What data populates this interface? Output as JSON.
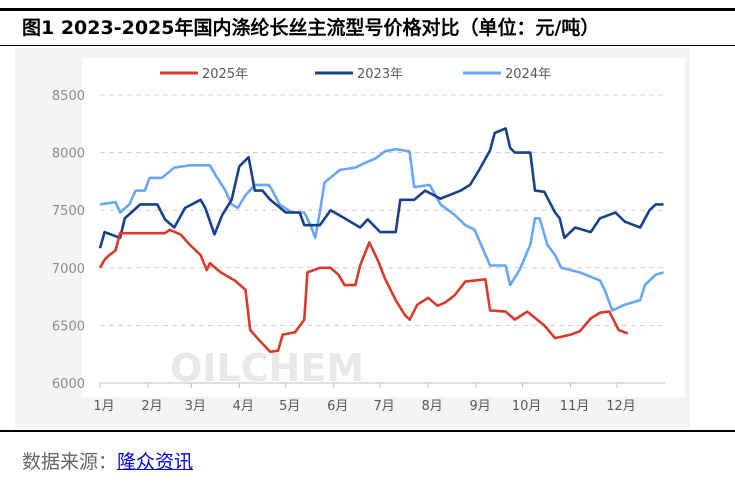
{
  "title": "图1 2023-2025年国内涤纶长丝主流型号价格对比（单位：元/吨）",
  "source_label": "数据来源：",
  "source_link": "隆众资讯",
  "watermark": "OILCHEM",
  "chart_data": {
    "type": "line",
    "title": "图1 2023-2025年国内涤纶长丝主流型号价格对比（单位：元/吨）",
    "xlabel": "",
    "ylabel": "",
    "ylim": [
      6000,
      8500
    ],
    "yticks": [
      6000,
      6500,
      7000,
      7500,
      8000,
      8500
    ],
    "xticks": [
      "1月",
      "2月",
      "3月",
      "4月",
      "5月",
      "6月",
      "7月",
      "8月",
      "9月",
      "10月",
      "11月",
      "12月"
    ],
    "grid": "horizontal dashed",
    "legend": "top",
    "series": [
      {
        "name": "2025年",
        "color": "#d93a2b",
        "points": [
          [
            "01-01",
            7000
          ],
          [
            "01-04",
            7070
          ],
          [
            "01-07",
            7110
          ],
          [
            "01-11",
            7150
          ],
          [
            "01-14",
            7300
          ],
          [
            "02-12",
            7300
          ],
          [
            "02-15",
            7330
          ],
          [
            "02-22",
            7290
          ],
          [
            "02-28",
            7200
          ],
          [
            "03-07",
            7110
          ],
          [
            "03-11",
            6980
          ],
          [
            "03-13",
            7040
          ],
          [
            "03-20",
            6960
          ],
          [
            "03-29",
            6890
          ],
          [
            "04-05",
            6810
          ],
          [
            "04-08",
            6460
          ],
          [
            "04-14",
            6370
          ],
          [
            "04-21",
            6270
          ],
          [
            "04-26",
            6280
          ],
          [
            "04-29",
            6420
          ],
          [
            "05-07",
            6440
          ],
          [
            "05-13",
            6550
          ],
          [
            "05-15",
            6960
          ],
          [
            "05-23",
            7000
          ],
          [
            "05-30",
            7000
          ],
          [
            "06-04",
            6940
          ],
          [
            "06-08",
            6850
          ],
          [
            "06-15",
            6850
          ],
          [
            "06-18",
            7020
          ],
          [
            "06-24",
            7220
          ],
          [
            "06-30",
            7050
          ],
          [
            "07-04",
            6910
          ],
          [
            "07-11",
            6720
          ],
          [
            "07-17",
            6590
          ],
          [
            "07-20",
            6550
          ],
          [
            "07-25",
            6680
          ],
          [
            "08-01",
            6740
          ],
          [
            "08-07",
            6670
          ],
          [
            "08-12",
            6700
          ],
          [
            "08-18",
            6760
          ],
          [
            "08-25",
            6880
          ],
          [
            "09-07",
            6900
          ],
          [
            "09-10",
            6630
          ],
          [
            "09-20",
            6620
          ],
          [
            "09-26",
            6550
          ],
          [
            "10-04",
            6620
          ],
          [
            "10-15",
            6500
          ],
          [
            "10-22",
            6390
          ],
          [
            "11-01",
            6420
          ],
          [
            "11-07",
            6450
          ],
          [
            "11-14",
            6560
          ],
          [
            "11-20",
            6610
          ],
          [
            "11-26",
            6620
          ],
          [
            "12-02",
            6460
          ],
          [
            "12-08",
            6430
          ]
        ]
      },
      {
        "name": "2023年",
        "color": "#17428a",
        "points": [
          [
            "01-01",
            7170
          ],
          [
            "01-04",
            7310
          ],
          [
            "01-14",
            7260
          ],
          [
            "01-17",
            7430
          ],
          [
            "01-27",
            7550
          ],
          [
            "02-07",
            7550
          ],
          [
            "02-12",
            7420
          ],
          [
            "02-18",
            7350
          ],
          [
            "02-25",
            7520
          ],
          [
            "03-07",
            7590
          ],
          [
            "03-10",
            7520
          ],
          [
            "03-16",
            7290
          ],
          [
            "03-21",
            7460
          ],
          [
            "03-27",
            7590
          ],
          [
            "04-01",
            7880
          ],
          [
            "04-07",
            7960
          ],
          [
            "04-11",
            7670
          ],
          [
            "04-16",
            7670
          ],
          [
            "04-21",
            7590
          ],
          [
            "05-01",
            7480
          ],
          [
            "05-10",
            7480
          ],
          [
            "05-13",
            7370
          ],
          [
            "05-23",
            7370
          ],
          [
            "05-30",
            7500
          ],
          [
            "06-08",
            7430
          ],
          [
            "06-18",
            7350
          ],
          [
            "06-23",
            7420
          ],
          [
            "07-01",
            7310
          ],
          [
            "07-11",
            7310
          ],
          [
            "07-14",
            7590
          ],
          [
            "07-23",
            7590
          ],
          [
            "07-30",
            7670
          ],
          [
            "08-09",
            7600
          ],
          [
            "08-22",
            7670
          ],
          [
            "08-28",
            7720
          ],
          [
            "09-03",
            7850
          ],
          [
            "09-10",
            8020
          ],
          [
            "09-13",
            8170
          ],
          [
            "09-20",
            8210
          ],
          [
            "09-23",
            8040
          ],
          [
            "09-26",
            8000
          ],
          [
            "10-06",
            8000
          ],
          [
            "10-09",
            7670
          ],
          [
            "10-15",
            7660
          ],
          [
            "10-22",
            7480
          ],
          [
            "10-25",
            7430
          ],
          [
            "10-28",
            7260
          ],
          [
            "11-04",
            7350
          ],
          [
            "11-14",
            7310
          ],
          [
            "11-20",
            7430
          ],
          [
            "11-30",
            7480
          ],
          [
            "12-06",
            7400
          ],
          [
            "12-16",
            7350
          ],
          [
            "12-22",
            7500
          ],
          [
            "12-26",
            7550
          ],
          [
            "12-31",
            7550
          ]
        ]
      },
      {
        "name": "2024年",
        "color": "#6aa6f8",
        "points": [
          [
            "01-01",
            7550
          ],
          [
            "01-11",
            7570
          ],
          [
            "01-14",
            7480
          ],
          [
            "01-20",
            7550
          ],
          [
            "01-24",
            7670
          ],
          [
            "01-30",
            7670
          ],
          [
            "02-02",
            7780
          ],
          [
            "02-10",
            7780
          ],
          [
            "02-18",
            7870
          ],
          [
            "02-28",
            7890
          ],
          [
            "03-13",
            7890
          ],
          [
            "03-16",
            7820
          ],
          [
            "03-23",
            7670
          ],
          [
            "03-27",
            7550
          ],
          [
            "03-31",
            7520
          ],
          [
            "04-05",
            7630
          ],
          [
            "04-11",
            7720
          ],
          [
            "04-20",
            7720
          ],
          [
            "04-22",
            7680
          ],
          [
            "04-27",
            7550
          ],
          [
            "05-05",
            7480
          ],
          [
            "05-13",
            7480
          ],
          [
            "05-17",
            7370
          ],
          [
            "05-20",
            7260
          ],
          [
            "05-23",
            7480
          ],
          [
            "05-26",
            7740
          ],
          [
            "06-05",
            7850
          ],
          [
            "06-15",
            7870
          ],
          [
            "06-21",
            7910
          ],
          [
            "06-28",
            7950
          ],
          [
            "07-04",
            8010
          ],
          [
            "07-11",
            8030
          ],
          [
            "07-20",
            8010
          ],
          [
            "07-23",
            7700
          ],
          [
            "08-02",
            7720
          ],
          [
            "08-09",
            7550
          ],
          [
            "08-18",
            7460
          ],
          [
            "08-25",
            7370
          ],
          [
            "08-31",
            7330
          ],
          [
            "09-10",
            7020
          ],
          [
            "09-20",
            7020
          ],
          [
            "09-23",
            6850
          ],
          [
            "09-29",
            6980
          ],
          [
            "10-06",
            7200
          ],
          [
            "10-09",
            7430
          ],
          [
            "10-12",
            7430
          ],
          [
            "10-17",
            7200
          ],
          [
            "10-22",
            7110
          ],
          [
            "10-26",
            7000
          ],
          [
            "11-07",
            6960
          ],
          [
            "11-20",
            6890
          ],
          [
            "11-23",
            6810
          ],
          [
            "11-28",
            6630
          ],
          [
            "12-06",
            6680
          ],
          [
            "12-16",
            6720
          ],
          [
            "12-19",
            6850
          ],
          [
            "12-26",
            6940
          ],
          [
            "12-31",
            6960
          ]
        ]
      }
    ]
  }
}
